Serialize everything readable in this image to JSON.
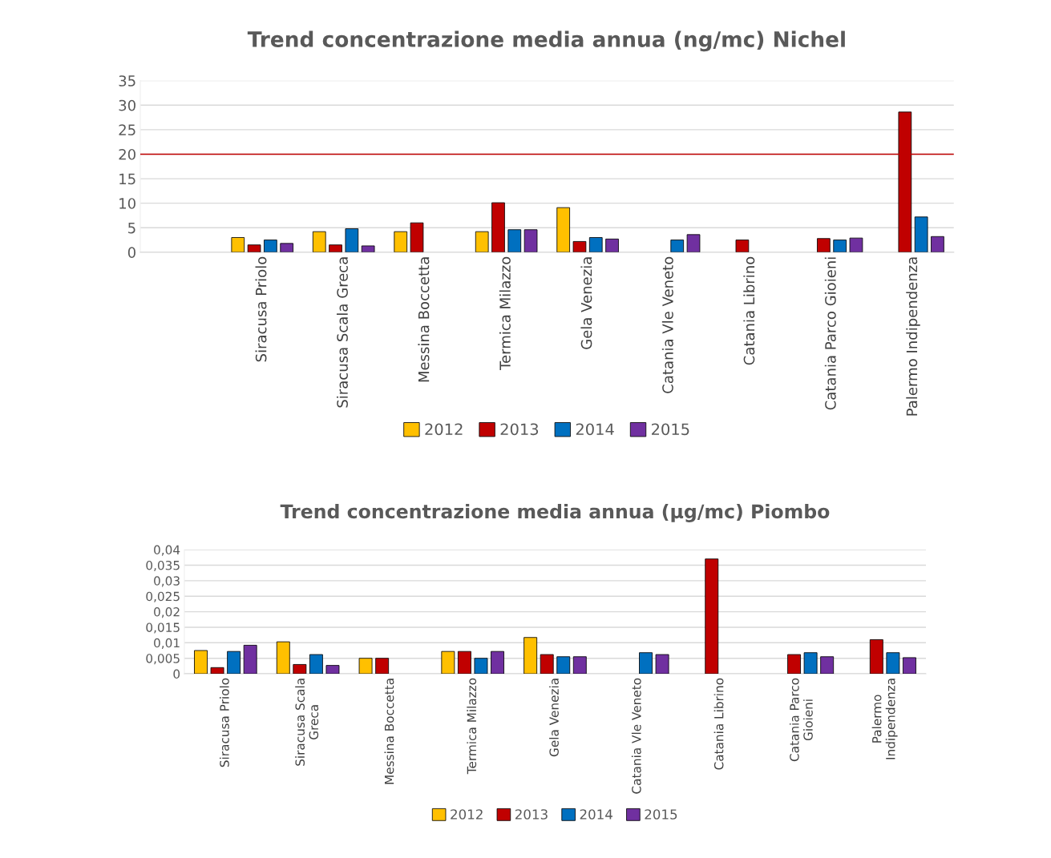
{
  "chart_data": [
    {
      "type": "bar",
      "title": "Trend concentrazione media annua (ng/mc) Nichel",
      "categories": [
        null,
        "Siracusa Priolo",
        "Siracusa Scala Greca",
        "Messina Boccetta",
        "Termica Milazzo",
        "Gela Venezia",
        "Catania Vle Veneto",
        "Catania Librino",
        "Catania Parco Gioieni",
        "Palermo Indipendenza"
      ],
      "series": [
        {
          "name": "2012",
          "color": "#ffc000",
          "values": [
            null,
            3,
            4.2,
            4.2,
            4.2,
            9.1,
            null,
            null,
            null,
            null
          ]
        },
        {
          "name": "2013",
          "color": "#c00000",
          "values": [
            null,
            1.5,
            1.5,
            6,
            10.1,
            2.2,
            null,
            2.5,
            2.8,
            28.6
          ]
        },
        {
          "name": "2014",
          "color": "#0070c0",
          "values": [
            null,
            2.5,
            4.8,
            null,
            4.6,
            3,
            2.5,
            null,
            2.5,
            7.2
          ]
        },
        {
          "name": "2015",
          "color": "#7030a0",
          "values": [
            null,
            1.8,
            1.3,
            null,
            4.6,
            2.7,
            3.6,
            null,
            2.9,
            3.2
          ]
        }
      ],
      "ylim": [
        0,
        35
      ],
      "yticks": [
        0,
        5,
        10,
        15,
        20,
        25,
        30,
        35
      ],
      "grid": "y",
      "legend": "bottom",
      "ref_lines": [
        {
          "axis": "y",
          "value": 20,
          "color": "#c00000"
        }
      ]
    },
    {
      "type": "bar",
      "title": "Trend concentrazione media annua (µg/mc) Piombo",
      "categories": [
        "Siracusa Priolo",
        "Siracusa Scala\nGreca",
        "Messina Boccetta",
        "Termica Milazzo",
        "Gela Venezia",
        "Catania Vle Veneto",
        "Catania Librino",
        "Catania Parco\nGioieni",
        "Palermo\nIndipendenza"
      ],
      "series": [
        {
          "name": "2012",
          "color": "#ffc000",
          "values": [
            0.0075,
            0.0103,
            0.005,
            0.0072,
            0.0117,
            null,
            null,
            null,
            null
          ]
        },
        {
          "name": "2013",
          "color": "#c00000",
          "values": [
            0.002,
            0.003,
            0.005,
            0.0072,
            0.0062,
            null,
            0.037,
            0.0062,
            0.011
          ]
        },
        {
          "name": "2014",
          "color": "#0070c0",
          "values": [
            0.0072,
            0.0062,
            null,
            0.005,
            0.0055,
            0.0068,
            null,
            0.0068,
            0.0068
          ]
        },
        {
          "name": "2015",
          "color": "#7030a0",
          "values": [
            0.0092,
            0.0027,
            null,
            0.0072,
            0.0055,
            0.0062,
            null,
            0.0055,
            0.0052
          ]
        }
      ],
      "ylim": [
        0,
        0.04
      ],
      "yticks": [
        0,
        {
          "value": 0.005,
          "label": "0,005"
        },
        {
          "value": 0.01,
          "label": "0,01"
        },
        {
          "value": 0.015,
          "label": "0,015"
        },
        {
          "value": 0.02,
          "label": "0,02"
        },
        {
          "value": 0.025,
          "label": "0,025"
        },
        {
          "value": 0.03,
          "label": "0,03"
        },
        {
          "value": 0.035,
          "label": "0,035"
        },
        {
          "value": 0.04,
          "label": "0,04"
        }
      ],
      "grid": "y",
      "legend": "bottom"
    }
  ]
}
